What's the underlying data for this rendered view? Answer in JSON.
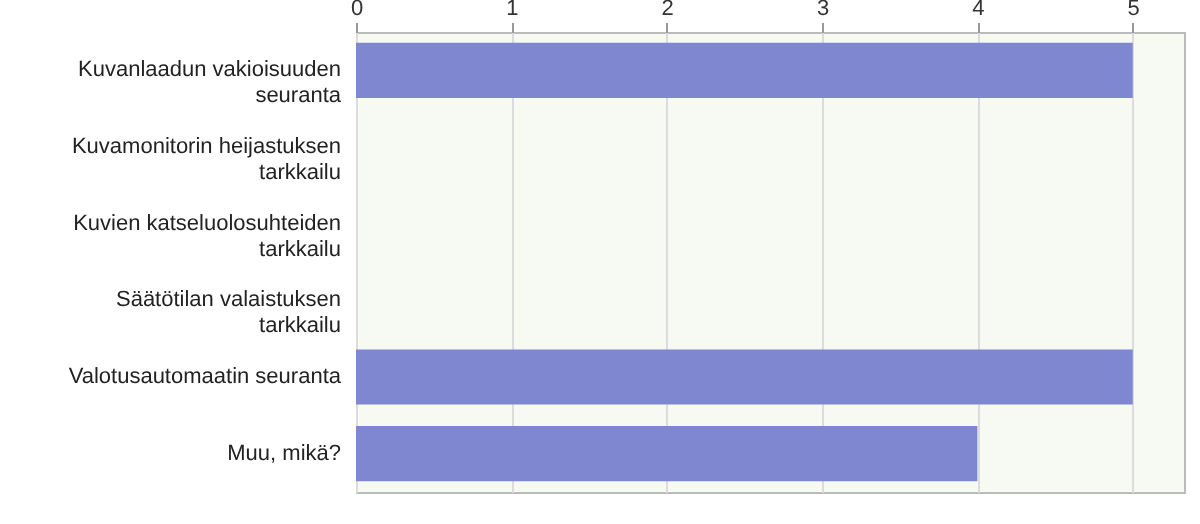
{
  "chart_data": {
    "type": "bar",
    "orientation": "horizontal",
    "categories": [
      "Kuvanlaadun vakioisuuden seuranta",
      "Kuvamonitorin heijastuksen tarkkailu",
      "Kuvien katseluolosuhteiden tarkkailu",
      "Säätötilan valaistuksen tarkkailu",
      "Valotusautomaatin seuranta",
      "Muu, mikä?"
    ],
    "values": [
      5,
      0,
      0,
      0,
      5,
      4
    ],
    "color": "#7f87d0",
    "xlim": [
      0,
      5.33
    ],
    "xticks": [
      0,
      1,
      2,
      3,
      4,
      5
    ],
    "grid": "x"
  }
}
